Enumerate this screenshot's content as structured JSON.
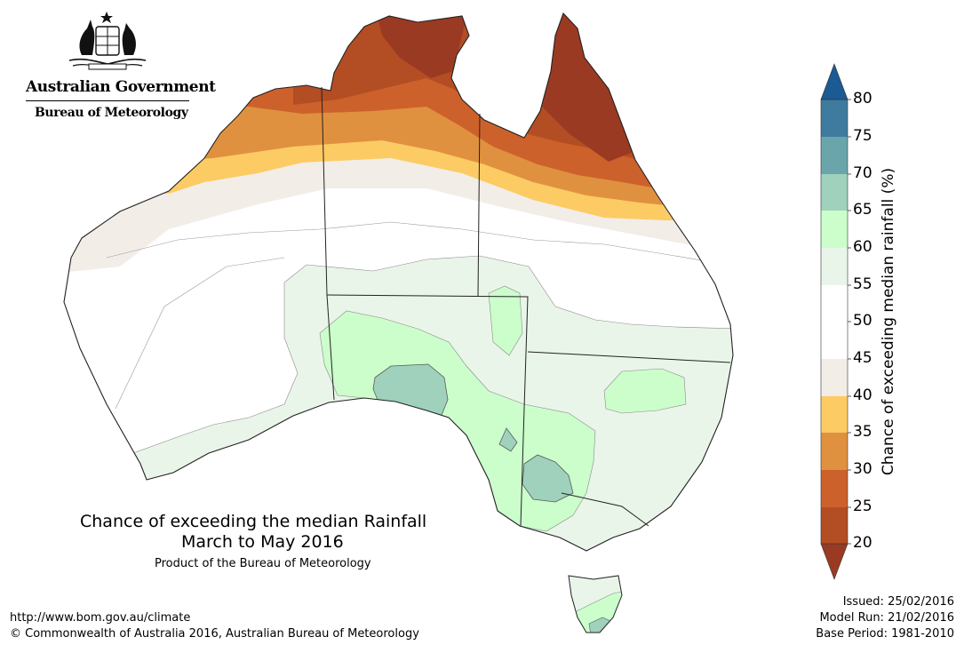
{
  "branding": {
    "government": "Australian Government",
    "agency": "Bureau of Meteorology",
    "crest_icon": "commonwealth-coat-of-arms-icon"
  },
  "map": {
    "title": "Chance of exceeding the median Rainfall",
    "period": "March to May 2016",
    "product": "Product of the Bureau of Meteorology",
    "region": "Australia",
    "color_regions": [
      {
        "area": "Top End / Cape York interior",
        "range": "20-25"
      },
      {
        "area": "Northern coast band",
        "range": "25-30"
      },
      {
        "area": "Northern band",
        "range": "30-35"
      },
      {
        "area": "Kimberley to Gulf band",
        "range": "35-40"
      },
      {
        "area": "Pilbara to central Qld band",
        "range": "40-45"
      },
      {
        "area": "Central Australia",
        "range": "45-55"
      },
      {
        "area": "Southern interior",
        "range": "55-60"
      },
      {
        "area": "SA / western NSW / Victoria",
        "range": "60-65"
      },
      {
        "area": "Eyre Peninsula / western Victoria patches",
        "range": "65-70"
      }
    ]
  },
  "legend": {
    "title": "Chance of exceeding median rainfall (%)",
    "ticks": [
      20,
      25,
      30,
      35,
      40,
      45,
      50,
      55,
      60,
      65,
      70,
      75,
      80
    ],
    "colors": [
      "#b34d23",
      "#cd612b",
      "#e0913f",
      "#fccb63",
      "#f2ede7",
      "#ffffff",
      "#ffffff",
      "#eaf5ea",
      "#ccfecc",
      "#9fd1bc",
      "#6aa5ab",
      "#3f7b9f"
    ],
    "under_color": "#9b3a22",
    "over_color": "#1b5a92"
  },
  "footer": {
    "url": "http://www.bom.gov.au/climate",
    "copyright": "© Commonwealth of Australia 2016, Australian Bureau of Meteorology",
    "issued": "Issued: 25/02/2016",
    "model_run": "Model Run: 21/02/2016",
    "base_period": "Base Period: 1981-2010"
  }
}
